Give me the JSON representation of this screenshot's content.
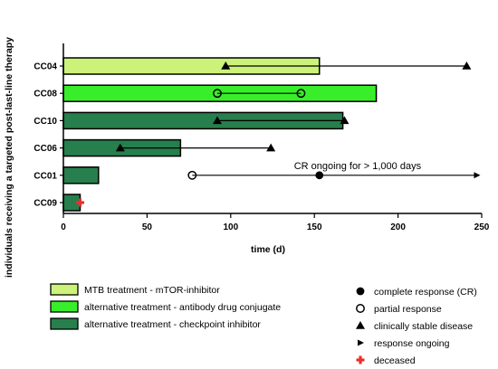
{
  "chart_data": {
    "type": "bar",
    "orientation": "horizontal",
    "xlabel": "time (d)",
    "ylabel": "individuals receiving a targeted post-last-line therapy",
    "xlim": [
      0,
      250
    ],
    "xticks": [
      "0",
      "50",
      "100",
      "150",
      "200",
      "250"
    ],
    "grid": false,
    "legend_placement": "bottom",
    "categories": [
      "CC04",
      "CC08",
      "CC10",
      "CC06",
      "CC01",
      "CC09"
    ],
    "series": [
      {
        "name": "MTB treatment - mTOR-inhibitor",
        "color": "#ccf27a",
        "rows": [
          "CC04"
        ]
      },
      {
        "name": "alternative treatment - antibody drug conjugate",
        "color": "#38ee2a",
        "rows": [
          "CC08"
        ]
      },
      {
        "name": "alternative treatment - checkpoint inhibitor",
        "color": "#267f4c",
        "rows": [
          "CC10",
          "CC06",
          "CC01",
          "CC09"
        ]
      }
    ],
    "bars": [
      {
        "patient": "CC04",
        "end": 153,
        "treatment": "MTB treatment - mTOR-inhibitor"
      },
      {
        "patient": "CC08",
        "end": 187,
        "treatment": "alternative treatment - antibody drug conjugate"
      },
      {
        "patient": "CC10",
        "end": 167,
        "treatment": "alternative treatment - checkpoint inhibitor"
      },
      {
        "patient": "CC06",
        "end": 70,
        "treatment": "alternative treatment - checkpoint inhibitor"
      },
      {
        "patient": "CC01",
        "end": 21,
        "treatment": "alternative treatment - checkpoint inhibitor"
      },
      {
        "patient": "CC09",
        "end": 10,
        "treatment": "alternative treatment - checkpoint inhibitor"
      }
    ],
    "response_lines": [
      {
        "patient": "CC04",
        "start": 97,
        "end": 241,
        "start_marker": "triangle",
        "end_marker": "triangle",
        "ongoing": false
      },
      {
        "patient": "CC08",
        "start": 92,
        "end": 142,
        "start_marker": "circle-open",
        "end_marker": "circle-open",
        "ongoing": false
      },
      {
        "patient": "CC10",
        "start": 92,
        "end": 168,
        "start_marker": "triangle",
        "end_marker": "triangle",
        "ongoing": false
      },
      {
        "patient": "CC06",
        "start": 34,
        "end": 124,
        "start_marker": "triangle",
        "end_marker": "triangle",
        "ongoing": false
      },
      {
        "patient": "CC01",
        "start": 77,
        "end": 247,
        "start_marker": "circle-open",
        "end_marker": "arrow",
        "ongoing": true,
        "mid_markers": [
          {
            "x": 153,
            "marker": "circle-filled"
          }
        ]
      }
    ],
    "deceased": [
      {
        "patient": "CC09",
        "x": 10
      }
    ],
    "annotations": [
      {
        "patient": "CC01",
        "x": 153,
        "text": "CR ongoing for > 1,000 days"
      }
    ],
    "symbol_legend": [
      {
        "marker": "circle-filled",
        "label": "complete response (CR)"
      },
      {
        "marker": "circle-open",
        "label": "partial response"
      },
      {
        "marker": "triangle",
        "label": "clinically stable disease"
      },
      {
        "marker": "arrow",
        "label": "response ongoing"
      },
      {
        "marker": "cross",
        "label": "deceased",
        "color": "#e8302e"
      }
    ]
  }
}
